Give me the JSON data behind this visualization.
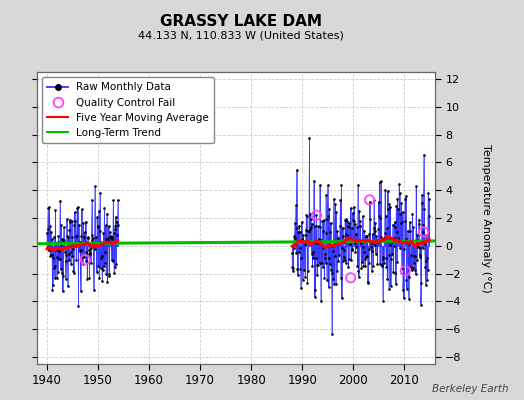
{
  "title": "GRASSY LAKE DAM",
  "subtitle": "44.133 N, 110.833 W (United States)",
  "ylabel": "Temperature Anomaly (°C)",
  "credit": "Berkeley Earth",
  "ylim": [
    -8.5,
    12.5
  ],
  "xlim": [
    1938,
    2016
  ],
  "yticks": [
    -8,
    -6,
    -4,
    -2,
    0,
    2,
    4,
    6,
    8,
    10,
    12
  ],
  "xticks": [
    1940,
    1950,
    1960,
    1970,
    1980,
    1990,
    2000,
    2010
  ],
  "bg_color": "#d8d8d8",
  "plot_bg_color": "#ffffff",
  "line_color_raw": "#3333ff",
  "line_color_ma": "#ff0000",
  "line_color_trend": "#00bb00",
  "qc_color": "#ff44ff",
  "marker_color": "#000000",
  "seed": 42
}
